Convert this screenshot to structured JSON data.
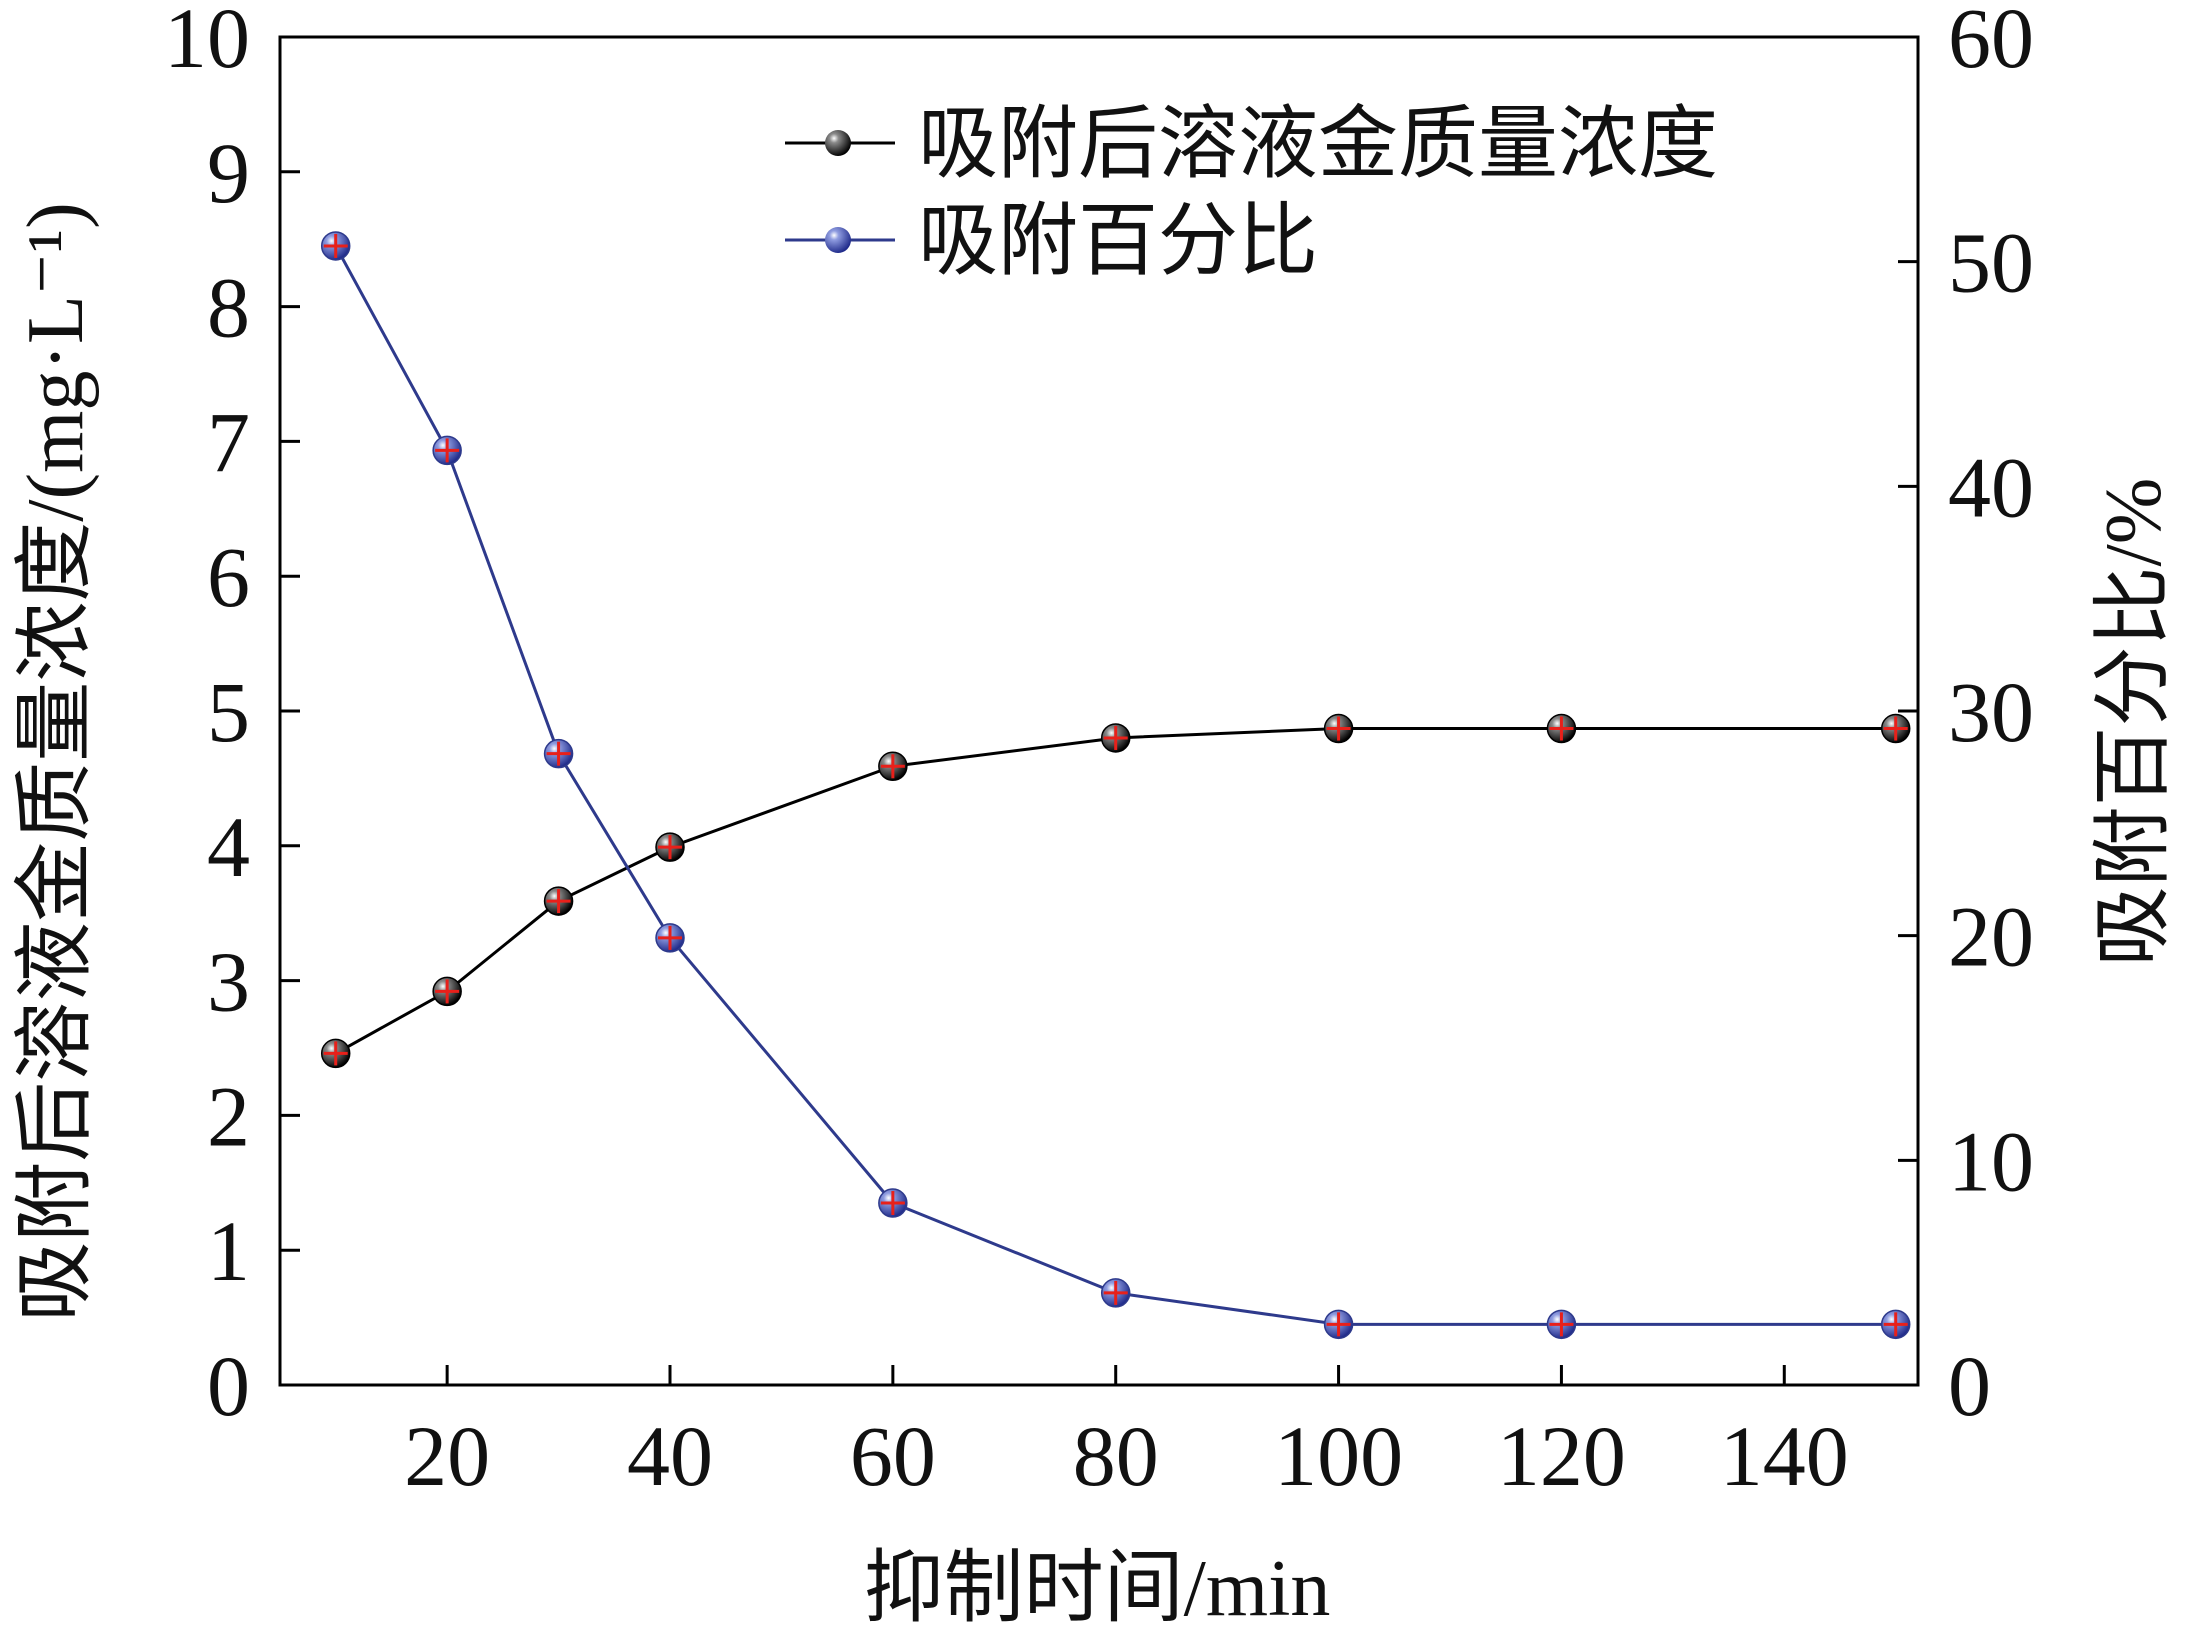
{
  "chart_data": {
    "type": "line",
    "xlabel": "抑制时间/min",
    "ylabel_left": "吸附后溶液金质量浓度/(mg·L⁻¹)",
    "ylabel_right": "吸附百分比/%",
    "xlim": [
      5,
      152
    ],
    "xticks": [
      20,
      40,
      60,
      80,
      100,
      120,
      140
    ],
    "ylim_left": [
      0,
      10
    ],
    "yticks_left": [
      0,
      1,
      2,
      3,
      4,
      5,
      6,
      7,
      8,
      9,
      10
    ],
    "ylim_right": [
      0,
      60
    ],
    "yticks_right": [
      0,
      10,
      20,
      30,
      40,
      50,
      60
    ],
    "grid": false,
    "legend_position": "top-right",
    "x": [
      10,
      20,
      30,
      40,
      60,
      80,
      100,
      120,
      150
    ],
    "series": [
      {
        "name": "吸附后溶液金质量浓度",
        "axis": "left",
        "color": "#000000",
        "marker_color": "#1a1a1a",
        "values": [
          2.46,
          2.92,
          3.59,
          3.99,
          4.59,
          4.8,
          4.87,
          4.87,
          4.87
        ]
      },
      {
        "name": "吸附百分比",
        "axis": "right",
        "color": "#2e3a8c",
        "marker_color": "#3a47b0",
        "values": [
          50.7,
          41.6,
          28.1,
          19.9,
          8.1,
          4.1,
          2.7,
          2.7,
          2.7
        ]
      }
    ],
    "error_bar_color": "#e8201a"
  }
}
